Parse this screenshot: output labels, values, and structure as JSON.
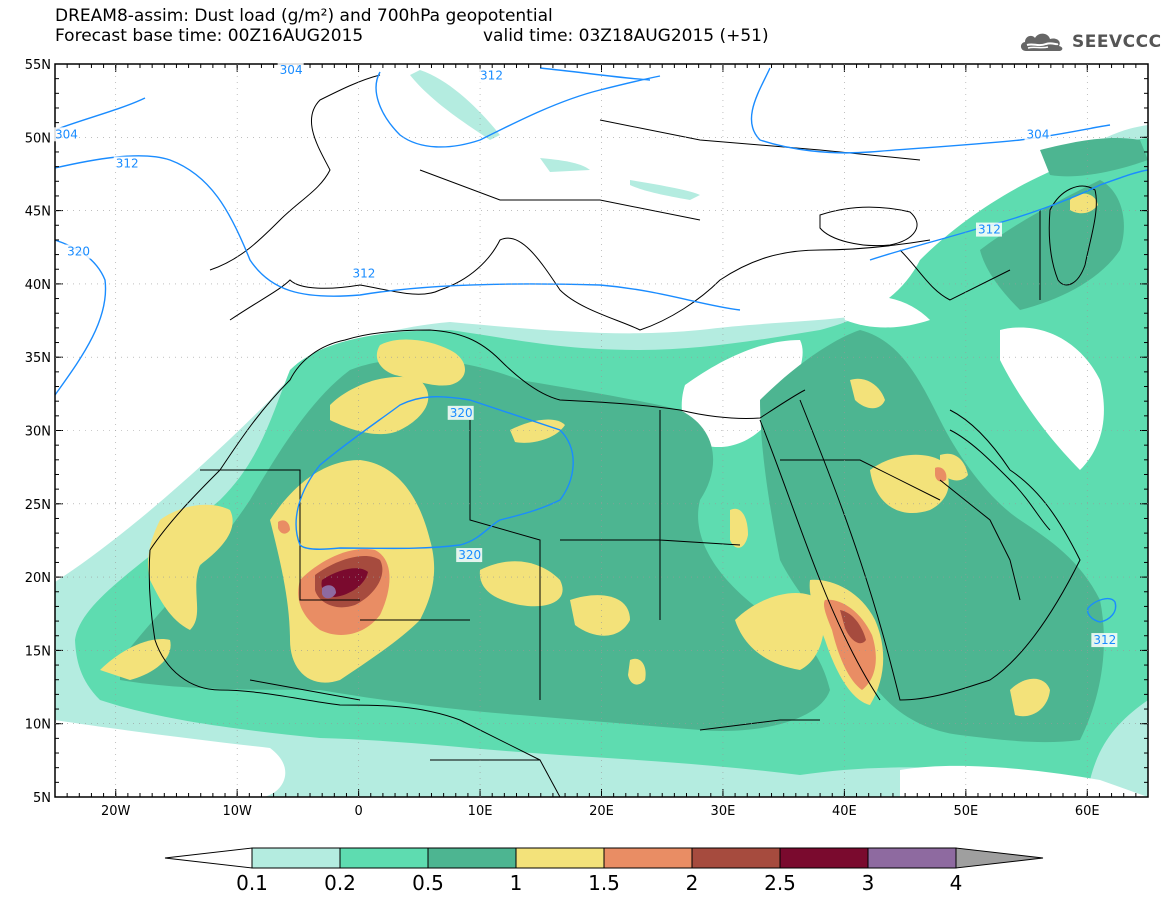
{
  "header": {
    "title_line1": "DREAM8-assim: Dust load (g/m²) and 700hPa geopotential",
    "title_line2": "Forecast base time: 00Z16AUG2015",
    "valid_time": "valid time: 03Z18AUG2015 (+51)",
    "logo_text": "SEEVCCC"
  },
  "map": {
    "lat_labels": [
      "55N",
      "50N",
      "45N",
      "40N",
      "35N",
      "30N",
      "25N",
      "20N",
      "15N",
      "10N",
      "5N"
    ],
    "lon_labels": [
      "20W",
      "10W",
      "0",
      "10E",
      "20E",
      "30E",
      "40E",
      "50E",
      "60E"
    ],
    "extent": {
      "lon_min": -25,
      "lon_max": 65,
      "lat_min": 5,
      "lat_max": 55
    },
    "contour_labels": [
      {
        "text": "304",
        "lon": -6.5,
        "lat": 54.4
      },
      {
        "text": "312",
        "lon": 10.0,
        "lat": 54.0
      },
      {
        "text": "304",
        "lon": -25.0,
        "lat": 50.0
      },
      {
        "text": "304",
        "lon": 55.0,
        "lat": 50.0
      },
      {
        "text": "312",
        "lon": -20.0,
        "lat": 48.0
      },
      {
        "text": "320",
        "lon": -24.0,
        "lat": 42.0
      },
      {
        "text": "312",
        "lon": -0.5,
        "lat": 40.5
      },
      {
        "text": "312",
        "lon": 51.0,
        "lat": 43.5
      },
      {
        "text": "320",
        "lon": 7.5,
        "lat": 31.0
      },
      {
        "text": "320",
        "lon": 8.2,
        "lat": 21.3
      },
      {
        "text": "312",
        "lon": 60.5,
        "lat": 15.5
      }
    ],
    "colors": {
      "geopotential": "#1a8cff",
      "coast": "#000000"
    }
  },
  "colorbar": {
    "labels": [
      "0.1",
      "0.2",
      "0.5",
      "1",
      "1.5",
      "2",
      "2.5",
      "3",
      "4"
    ],
    "colors": [
      "#b4ece0",
      "#5edcb0",
      "#4db591",
      "#f3e27a",
      "#e98d64",
      "#a64b3e",
      "#7a0a2e",
      "#8e6aa0"
    ],
    "min_color": "#ffffff",
    "max_color": "#9f9f9f"
  }
}
